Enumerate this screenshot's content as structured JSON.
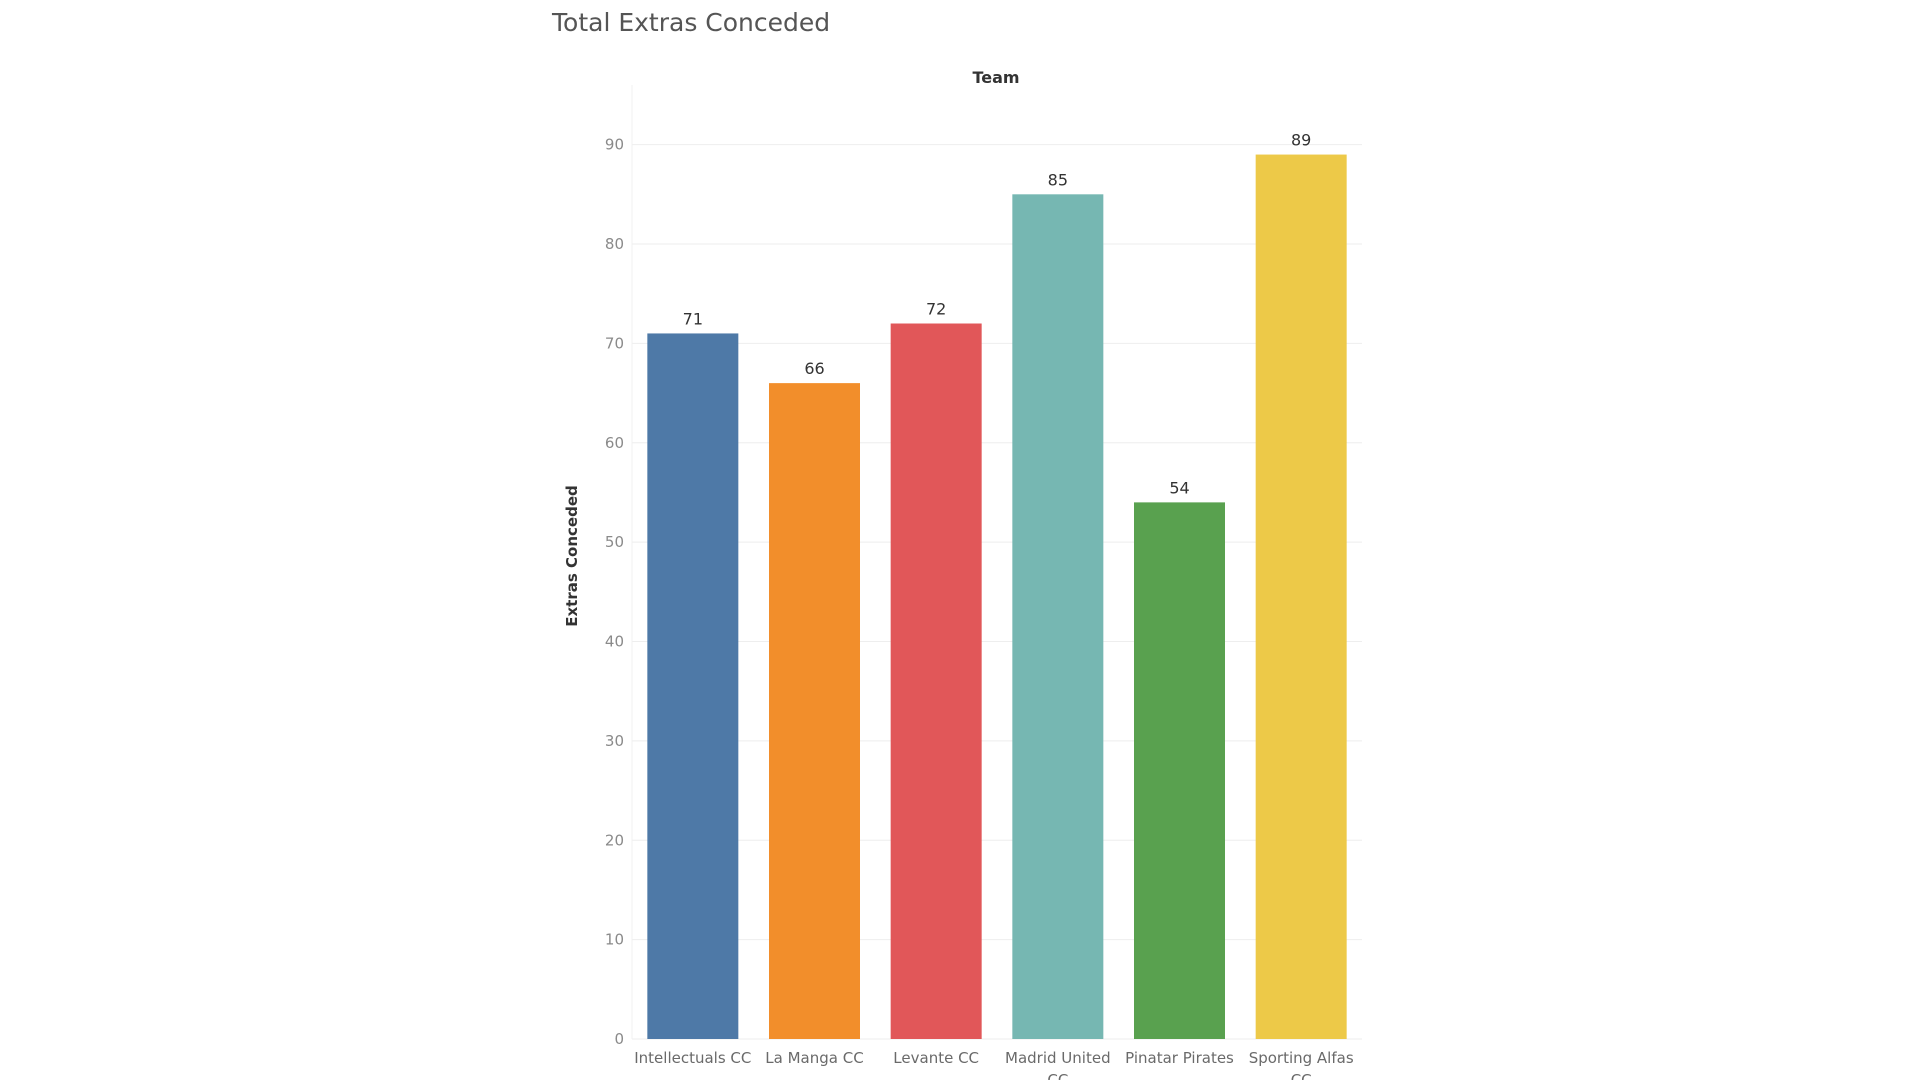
{
  "chart_data": {
    "type": "bar",
    "title": "Total Extras Conceded",
    "column_header": "Team",
    "xlabel": "",
    "ylabel": "Extras Conceded",
    "categories": [
      [
        "Intellectuals CC"
      ],
      [
        "La Manga CC"
      ],
      [
        "Levante CC"
      ],
      [
        "Madrid United",
        "CC"
      ],
      [
        "Pinatar Pirates"
      ],
      [
        "Sporting Alfas",
        "CC"
      ]
    ],
    "values": [
      71,
      66,
      72,
      85,
      54,
      89
    ],
    "data_labels": [
      "71",
      "66",
      "72",
      "85",
      "54",
      "89"
    ],
    "colors": [
      "#4e79a7",
      "#f28e2b",
      "#e15759",
      "#76b7b2",
      "#59a14f",
      "#edc948"
    ],
    "yticks": [
      0,
      10,
      20,
      30,
      40,
      50,
      60,
      70,
      80,
      90
    ],
    "ylim": [
      0,
      96
    ],
    "grid": true,
    "legend": "none"
  }
}
